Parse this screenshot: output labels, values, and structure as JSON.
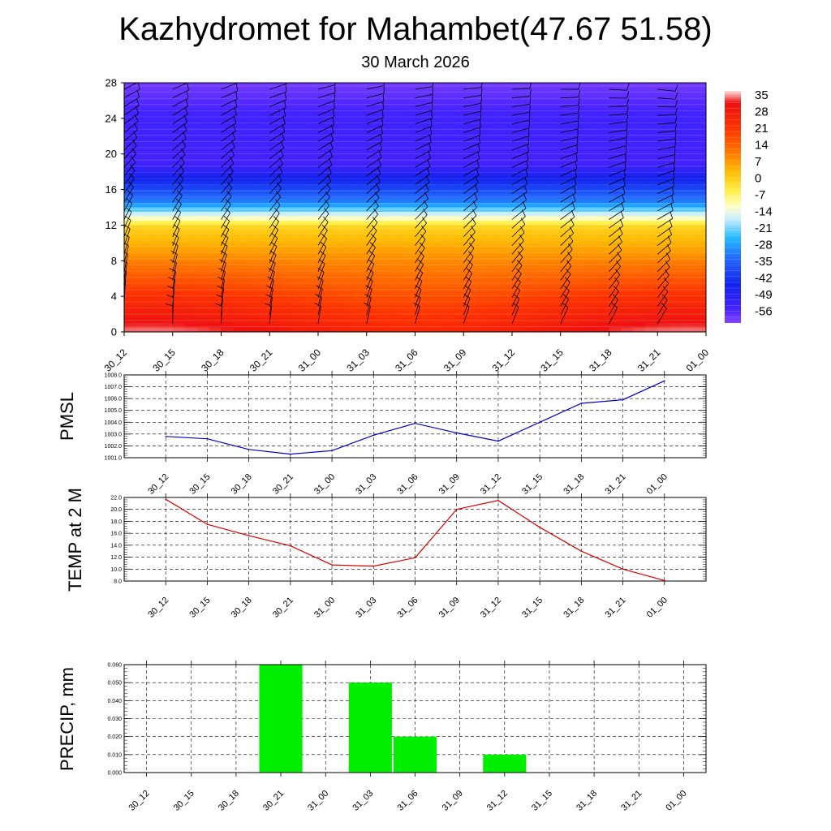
{
  "title": "Kazhydromet for Mahambet(47.67 51.58)",
  "subtitle": "30 March 2026",
  "time_labels": [
    "30_12",
    "30_15",
    "30_18",
    "30_21",
    "31_00",
    "31_03",
    "31_06",
    "31_09",
    "31_12",
    "31_15",
    "31_18",
    "31_21",
    "01_00"
  ],
  "colors": {
    "pmsl_line": "#0000cc",
    "temp_line": "#dd0000",
    "precip_bar": "#00ee00",
    "grid": "#000000",
    "barb": "#000000"
  },
  "chart_data": [
    {
      "type": "heatmap",
      "name": "vertical-profile",
      "x": [
        "30_12",
        "30_15",
        "30_18",
        "30_21",
        "31_00",
        "31_03",
        "31_06",
        "31_09",
        "31_12",
        "31_15",
        "31_18",
        "31_21",
        "01_00"
      ],
      "ylim": [
        0,
        28
      ],
      "yticks": [
        0,
        4,
        8,
        12,
        16,
        20,
        24,
        28
      ],
      "colorbar": {
        "labels": [
          "35",
          "28",
          "21",
          "14",
          "7",
          "0",
          "-7",
          "-14",
          "-21",
          "-28",
          "-35",
          "-42",
          "-49",
          "-56"
        ],
        "range": [
          -60,
          38
        ],
        "stops": [
          {
            "v": 38,
            "c": "#ffe0e0"
          },
          {
            "v": 33,
            "c": "#ee1111"
          },
          {
            "v": 22,
            "c": "#ff3300"
          },
          {
            "v": 12,
            "c": "#ff7700"
          },
          {
            "v": 4,
            "c": "#ffbb00"
          },
          {
            "v": -4,
            "c": "#ffee44"
          },
          {
            "v": -11,
            "c": "#ffffcc"
          },
          {
            "v": -16,
            "c": "#c8eeff"
          },
          {
            "v": -24,
            "c": "#22bbff"
          },
          {
            "v": -33,
            "c": "#2266ff"
          },
          {
            "v": -44,
            "c": "#1122ee"
          },
          {
            "v": -54,
            "c": "#4422ff"
          },
          {
            "v": -60,
            "c": "#8844ff"
          }
        ]
      }
    },
    {
      "type": "line",
      "ylabel": "PMSL",
      "x": [
        "30_12",
        "30_15",
        "30_18",
        "30_21",
        "31_00",
        "31_03",
        "31_06",
        "31_09",
        "31_12",
        "31_15",
        "31_18",
        "31_21",
        "01_00"
      ],
      "values": [
        1002.8,
        1002.6,
        1001.7,
        1001.3,
        1001.6,
        1002.9,
        1003.9,
        1003.1,
        1002.4,
        1004.0,
        1005.6,
        1005.9,
        1007.5
      ],
      "ylim": [
        1001.0,
        1008.0
      ],
      "yticks": [
        "1001.0",
        "1002.0",
        "1003.0",
        "1004.0",
        "1005.0",
        "1006.0",
        "1007.0",
        "1008.0"
      ],
      "grid": true
    },
    {
      "type": "line",
      "ylabel": "TEMP at 2 M",
      "x": [
        "30_12",
        "30_15",
        "30_18",
        "30_21",
        "31_00",
        "31_03",
        "31_06",
        "31_09",
        "31_12",
        "31_15",
        "31_18",
        "31_21",
        "01_00"
      ],
      "values": [
        21.7,
        17.5,
        15.6,
        13.9,
        10.7,
        10.5,
        11.9,
        20.0,
        21.5,
        17.0,
        13.0,
        10.0,
        8.1
      ],
      "ylim": [
        8.0,
        22.0
      ],
      "yticks": [
        "8.0",
        "10.0",
        "12.0",
        "14.0",
        "16.0",
        "18.0",
        "20.0",
        "22.0"
      ],
      "grid": true
    },
    {
      "type": "bar",
      "ylabel": "PRECIP, mm",
      "categories": [
        "30_12",
        "30_15",
        "30_18",
        "30_21",
        "31_00",
        "31_03",
        "31_06",
        "31_09",
        "31_12",
        "31_15",
        "31_18",
        "31_21",
        "01_00"
      ],
      "values": [
        0,
        0,
        0,
        0.06,
        0,
        0.05,
        0.02,
        0,
        0.01,
        0,
        0,
        0,
        0
      ],
      "ylim": [
        0.0,
        0.06
      ],
      "yticks": [
        "0.000",
        "0.010",
        "0.020",
        "0.030",
        "0.040",
        "0.050",
        "0.060"
      ],
      "grid": true
    }
  ]
}
